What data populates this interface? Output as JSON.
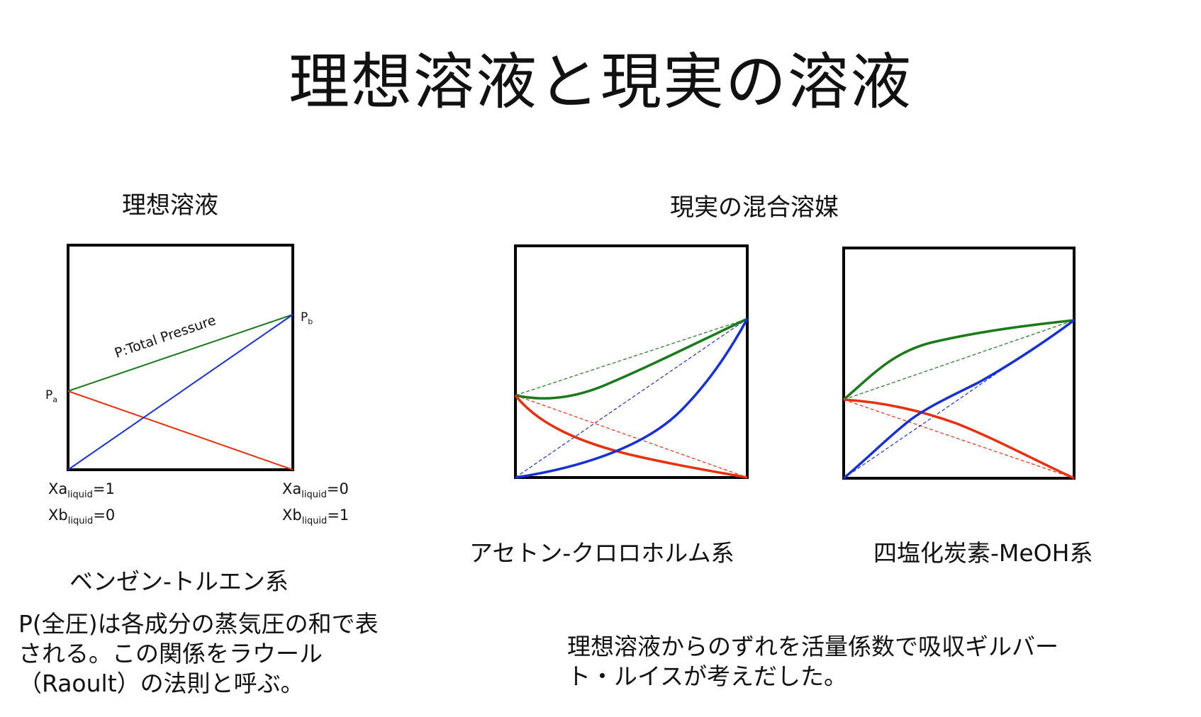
{
  "title": "理想溶液と現実の溶液",
  "ideal_section": {
    "heading": "理想溶液",
    "pa_main": "P",
    "pa_sub": "a",
    "pb_main": "P",
    "pb_sub": "b",
    "total_pressure_label": "P:Total Pressure",
    "xa_left_pre": "Xa",
    "xa_left_sub": "liquid",
    "xa_left_post": "=1",
    "xb_left_pre": "Xb",
    "xb_left_sub": "liquid",
    "xb_left_post": "=0",
    "xa_right_pre": "Xa",
    "xa_right_sub": "liquid",
    "xa_right_post": "=0",
    "xb_right_pre": "Xb",
    "xb_right_sub": "liquid",
    "xb_right_post": "=1",
    "caption": "ベンゼン-トルエン系",
    "description": "P(全圧)は各成分の蒸気圧の和で表される。この関係をラウール（Raoult）の法則と呼ぶ。"
  },
  "real_section": {
    "heading": "現実の混合溶媒",
    "caption_1": "アセトン-クロロホルム系",
    "caption_2": "四塩化炭素-MeOH系",
    "description": "理想溶液からのずれを活量係数で吸収ギルバート・ルイスが考えだした。"
  },
  "colors": {
    "total": "#1a7a1a",
    "component_a": "#e8300f",
    "component_b": "#1530d8",
    "frame": "#000000"
  }
}
